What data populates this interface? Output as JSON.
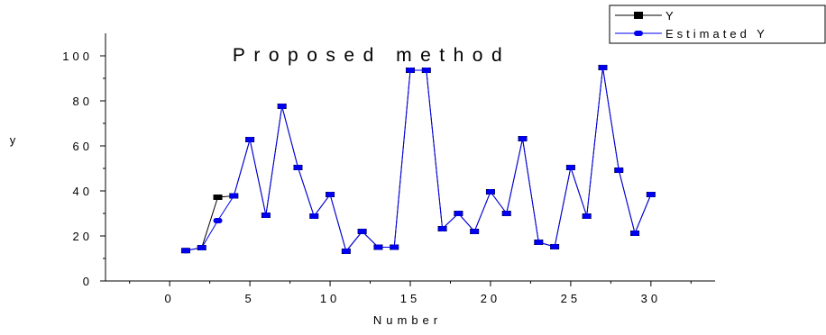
{
  "chart_data": {
    "type": "line",
    "title": "Proposed method",
    "xlabel": "Number",
    "ylabel": "y",
    "xlim": [
      -4,
      34
    ],
    "ylim": [
      0,
      100
    ],
    "x_ticks": [
      0,
      5,
      10,
      15,
      20,
      25,
      30
    ],
    "y_ticks": [
      0,
      20,
      40,
      60,
      80,
      100
    ],
    "x_tick_labels": [
      "0",
      "5",
      "10",
      "15",
      "20",
      "25",
      "30"
    ],
    "y_tick_labels": [
      "0",
      "20",
      "40",
      "60",
      "80",
      "100"
    ],
    "grid": false,
    "legend_position": "top-right",
    "x": [
      1,
      2,
      3,
      4,
      5,
      6,
      7,
      8,
      9,
      10,
      11,
      12,
      13,
      14,
      15,
      16,
      17,
      18,
      19,
      20,
      21,
      22,
      23,
      24,
      25,
      26,
      27,
      28,
      29,
      30
    ],
    "series": [
      {
        "name": "Y",
        "color": "#000000",
        "marker": "square",
        "values": [
          13.5,
          14.8,
          37.2,
          37.8,
          62.8,
          29.2,
          77.6,
          50.4,
          28.8,
          38.4,
          13.2,
          22.0,
          15.0,
          15.0,
          93.6,
          93.6,
          23.2,
          30.0,
          22.0,
          39.6,
          30.0,
          63.2,
          17.2,
          15.2,
          50.4,
          28.8,
          94.8,
          49.2,
          21.2,
          38.4
        ]
      },
      {
        "name": "Estimated Y",
        "color": "#0000ee",
        "marker": "circle",
        "values": [
          13.5,
          14.8,
          26.8,
          37.8,
          62.8,
          29.2,
          77.6,
          50.4,
          28.8,
          38.4,
          13.2,
          22.0,
          15.0,
          15.0,
          93.6,
          93.6,
          23.2,
          30.0,
          22.0,
          39.6,
          30.0,
          63.2,
          17.2,
          15.2,
          50.4,
          28.8,
          94.8,
          49.2,
          21.2,
          38.4
        ]
      }
    ]
  }
}
